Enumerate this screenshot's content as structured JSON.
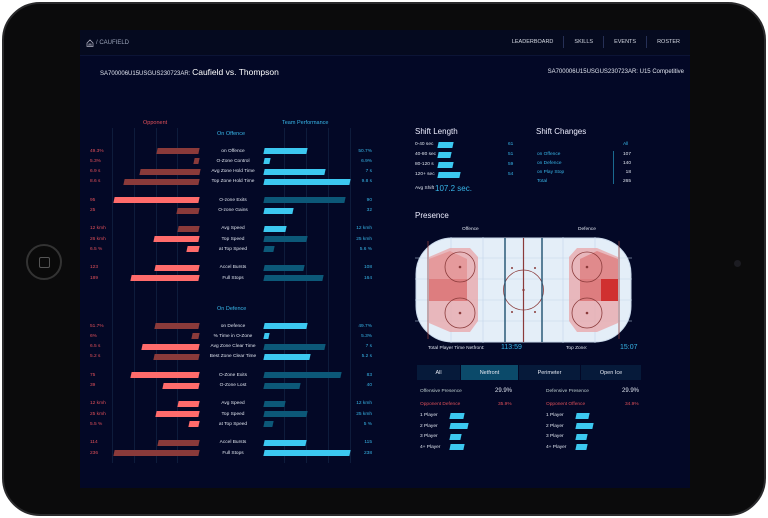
{
  "nav": {
    "home_icon": "home-icon",
    "crumb": "/ CAUFIELD",
    "items": [
      "LEADERBOARD",
      "SKILLS",
      "EVENTS",
      "ROSTER"
    ]
  },
  "header": {
    "game_id": "SA700006U15USGUS230723AR:",
    "matchup": "Caufield vs. Thompson",
    "right_id": "SA700006U15USGUS230723AR:",
    "right_level": "U15 Competitive"
  },
  "colors": {
    "opp_bright": "#ff6b6b",
    "opp_dark": "#8a3a3a",
    "team_bright": "#3cc8f0",
    "team_dark": "#0c5878",
    "bg": "#030826"
  },
  "comparison": {
    "opponent_label": "Opponent",
    "team_label": "Team Performance",
    "sections": [
      {
        "title": "On Offence",
        "groups": [
          [
            {
              "label": "on Offence",
              "opp": "49.3%",
              "team": "50.7%",
              "opp_fill": 0.49,
              "team_fill": 0.5,
              "opp_hi": false,
              "team_hi": true
            },
            {
              "label": "O-Zone Control",
              "opp": "5.3%",
              "team": "6.9%",
              "opp_fill": 0.06,
              "team_fill": 0.07,
              "opp_hi": false,
              "team_hi": true
            },
            {
              "label": "Avg Zone Hold Time",
              "opp": "6.9 s",
              "team": "7 s",
              "opp_fill": 0.7,
              "team_fill": 0.71,
              "opp_hi": false,
              "team_hi": true
            },
            {
              "label": "Top Zone Hold Time",
              "opp": "8.6 s",
              "team": "9.8 s",
              "opp_fill": 0.88,
              "team_fill": 1.0,
              "opp_hi": false,
              "team_hi": true
            }
          ],
          [
            {
              "label": "O-zone Exits",
              "opp": "95",
              "team": "90",
              "opp_fill": 1.0,
              "team_fill": 0.94,
              "opp_hi": true,
              "team_hi": false
            },
            {
              "label": "O-zone Gains",
              "opp": "25",
              "team": "32",
              "opp_fill": 0.26,
              "team_fill": 0.34,
              "opp_hi": false,
              "team_hi": true
            }
          ],
          [
            {
              "label": "Avg Speed",
              "opp": "12 kmh",
              "team": "12 kmh",
              "opp_fill": 0.25,
              "team_fill": 0.26,
              "opp_hi": false,
              "team_hi": true
            },
            {
              "label": "Top Speed",
              "opp": "26 kmh",
              "team": "25 kmh",
              "opp_fill": 0.53,
              "team_fill": 0.5,
              "opp_hi": true,
              "team_hi": false
            },
            {
              "label": "at Top Speed",
              "opp": "6.5 %",
              "team": "5.6 %",
              "opp_fill": 0.14,
              "team_fill": 0.12,
              "opp_hi": true,
              "team_hi": false
            }
          ],
          [
            {
              "label": "Accel Bursts",
              "opp": "123",
              "team": "108",
              "opp_fill": 0.52,
              "team_fill": 0.46,
              "opp_hi": true,
              "team_hi": false
            },
            {
              "label": "Full Stops",
              "opp": "189",
              "team": "164",
              "opp_fill": 0.8,
              "team_fill": 0.69,
              "opp_hi": true,
              "team_hi": false
            }
          ]
        ]
      },
      {
        "title": "On Defence",
        "groups": [
          [
            {
              "label": "on Defence",
              "opp": "51.7%",
              "team": "49.7%",
              "opp_fill": 0.52,
              "team_fill": 0.5,
              "opp_hi": false,
              "team_hi": true
            },
            {
              "label": "% Time in O-Zone",
              "opp": "6%",
              "team": "5.3%",
              "opp_fill": 0.08,
              "team_fill": 0.06,
              "opp_hi": false,
              "team_hi": true
            },
            {
              "label": "Avg Zone Clear Time",
              "opp": "6.5 s",
              "team": "7 s",
              "opp_fill": 0.67,
              "team_fill": 0.71,
              "opp_hi": true,
              "team_hi": false
            },
            {
              "label": "Best Zone Clear Time",
              "opp": "5.2 s",
              "team": "5.2 s",
              "opp_fill": 0.53,
              "team_fill": 0.54,
              "opp_hi": false,
              "team_hi": true
            }
          ],
          [
            {
              "label": "O-Zone Exits",
              "opp": "75",
              "team": "83",
              "opp_fill": 0.8,
              "team_fill": 0.9,
              "opp_hi": true,
              "team_hi": false
            },
            {
              "label": "O-Zone Lost",
              "opp": "39",
              "team": "40",
              "opp_fill": 0.42,
              "team_fill": 0.42,
              "opp_hi": true,
              "team_hi": false
            }
          ],
          [
            {
              "label": "Avg Speed",
              "opp": "12 kmh",
              "team": "12 kmh",
              "opp_fill": 0.25,
              "team_fill": 0.24,
              "opp_hi": true,
              "team_hi": false
            },
            {
              "label": "Top Speed",
              "opp": "25 kmh",
              "team": "25 kmh",
              "opp_fill": 0.51,
              "team_fill": 0.5,
              "opp_hi": true,
              "team_hi": false
            },
            {
              "label": "at Top Speed",
              "opp": "5.5 %",
              "team": "5 %",
              "opp_fill": 0.12,
              "team_fill": 0.1,
              "opp_hi": true,
              "team_hi": false
            }
          ],
          [
            {
              "label": "Accel Bursts",
              "opp": "114",
              "team": "115",
              "opp_fill": 0.48,
              "team_fill": 0.49,
              "opp_hi": false,
              "team_hi": true
            },
            {
              "label": "Full Stops",
              "opp": "236",
              "team": "238",
              "opp_fill": 1.0,
              "team_fill": 1.0,
              "opp_hi": false,
              "team_hi": true
            }
          ]
        ]
      }
    ]
  },
  "shift_length": {
    "title": "Shift Length",
    "rows": [
      {
        "label": "0-40 sec",
        "value": "61",
        "fill": 0.7
      },
      {
        "label": "40-80 sec",
        "value": "51",
        "fill": 0.6
      },
      {
        "label": "80-120 s",
        "value": "59",
        "fill": 0.68
      },
      {
        "label": "120+ sec",
        "value": "54",
        "fill": 1.0
      }
    ],
    "avg_label": "Avg Shift",
    "avg_value": "107.2 sec."
  },
  "shift_changes": {
    "title": "Shift Changes",
    "column": "All",
    "rows": [
      {
        "label": "on Offence",
        "value": "107"
      },
      {
        "label": "on Defence",
        "value": "140"
      },
      {
        "label": "on Play Stop",
        "value": "18"
      },
      {
        "label": "Total",
        "value": "265"
      }
    ]
  },
  "presence": {
    "title": "Presence",
    "offence_label": "Offence",
    "defence_label": "Defence",
    "netfront_label": "Total Player Time Netfront:",
    "netfront_value": "113:59",
    "top_zone_label": "Top Zone:",
    "top_zone_value": "15:07",
    "tabs": [
      "All",
      "Netfront",
      "Perimeter",
      "Open Ice"
    ],
    "active_tab": "Netfront",
    "offensive": {
      "label": "Offensive Presence",
      "value": "29.9%",
      "opp_label": "Opponent Defence",
      "opp_value": "35.9%",
      "players": [
        {
          "label": "1 Player",
          "fill": 0.75
        },
        {
          "label": "2 Player",
          "fill": 1.0
        },
        {
          "label": "3 Player",
          "fill": 0.6
        },
        {
          "label": "4+ Player",
          "fill": 0.78
        }
      ]
    },
    "defensive": {
      "label": "Defensive Presence",
      "value": "29.9%",
      "opp_label": "Opponent Offence",
      "opp_value": "34.9%",
      "players": [
        {
          "label": "1 Player",
          "fill": 0.7
        },
        {
          "label": "2 Player",
          "fill": 0.95
        },
        {
          "label": "3 Player",
          "fill": 0.62
        },
        {
          "label": "4+ Player",
          "fill": 0.6
        }
      ]
    }
  }
}
